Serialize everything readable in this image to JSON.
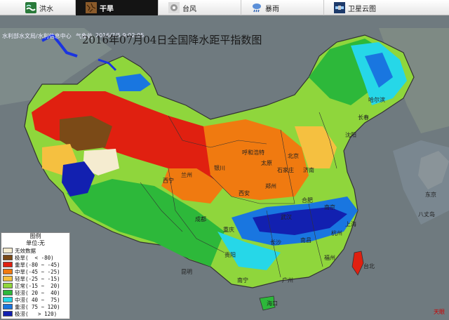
{
  "tabs": [
    {
      "label": "洪水",
      "icon": "flood-icon",
      "active": false
    },
    {
      "label": "干旱",
      "icon": "drought-icon",
      "active": true
    },
    {
      "label": "台风",
      "icon": "typhoon-icon",
      "active": false
    },
    {
      "label": "暴雨",
      "icon": "rainstorm-icon",
      "active": false
    },
    {
      "label": "卫星云图",
      "icon": "satellite-icon",
      "active": false
    }
  ],
  "header": {
    "org1": "水利部水文局/水利信息中心",
    "date": "2016/7/5 9:02:05",
    "source": "气象处",
    "title": "2016年07月04日全国降水距平指数图"
  },
  "legend": {
    "title": "图例",
    "unit": "单位:无",
    "items": [
      {
        "label": "无效数据",
        "range": "",
        "color": "#f5ecd0"
      },
      {
        "label": "极旱(",
        "range": "  < -80)",
        "color": "#7b4a17"
      },
      {
        "label": "重旱(",
        "range": "-80 ~ -45)",
        "color": "#e02010"
      },
      {
        "label": "中旱(",
        "range": "-45 ~ -25)",
        "color": "#f07a10"
      },
      {
        "label": "轻旱(",
        "range": "-25 ~ -15)",
        "color": "#f5c040"
      },
      {
        "label": "正常(",
        "range": "-15 ~  20)",
        "color": "#8fd63c"
      },
      {
        "label": "轻涝(",
        "range": " 20 ~  40)",
        "color": "#2db83a"
      },
      {
        "label": "中涝(",
        "range": " 40 ~  75)",
        "color": "#26d7e8"
      },
      {
        "label": "重涝(",
        "range": " 75 ~ 120)",
        "color": "#1976e0"
      },
      {
        "label": "极涝(",
        "range": "   > 120)",
        "color": "#1220b0"
      }
    ]
  },
  "labels": {
    "beijing": "北京",
    "lanzhou": "兰州",
    "xian": "西安",
    "taiyuan": "太原",
    "jinan": "济南",
    "shijiazhuang": "石家庄",
    "zhengzhou": "郑州",
    "hefei": "合肥",
    "shenyang": "沈阳",
    "changchun": "长春",
    "haerbin": "哈尔滨",
    "huhehaote": "呼和浩特",
    "yinchuan": "银川",
    "xining": "西宁",
    "chengdu": "成都",
    "chongqing": "重庆",
    "wuhan": "武汉",
    "nanjing": "南京",
    "shanghai": "上海",
    "hangzhou": "杭州",
    "changsha": "长沙",
    "nanchang": "南昌",
    "guiyang": "贵阳",
    "kunming": "昆明",
    "nanning": "南宁",
    "guangzhou": "广州",
    "fuzhou": "福州",
    "taibei": "台北",
    "haikou": "海口",
    "dongjing": "东京",
    "bahachu": "八丈岛",
    "logo": "天眼"
  }
}
